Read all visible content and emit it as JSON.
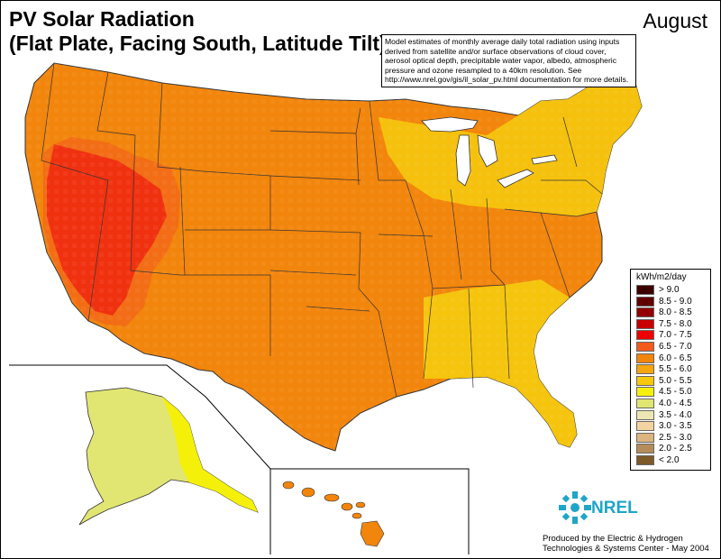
{
  "title_line1": "PV Solar Radiation",
  "title_line2": "(Flat Plate, Facing South, Latitude Tilt)",
  "month": "August",
  "note_lines": [
    "Model estimates of monthly average daily total radiation using inputs",
    "derived from satellite and/or surface observations of cloud cover,",
    "aerosol optical depth, precipitable water vapor, albedo, atmospheric",
    "pressure and ozone resampled to a 40km resolution.  See",
    "http://www.nrel.gov/gis/il_solar_pv.html documentation for more details."
  ],
  "legend": {
    "title": "kWh/m2/day",
    "items": [
      {
        "label": "> 9.0",
        "color": "#3c0000"
      },
      {
        "label": "8.5 - 9.0",
        "color": "#620000"
      },
      {
        "label": "8.0 - 8.5",
        "color": "#930000"
      },
      {
        "label": "7.5 - 8.0",
        "color": "#c80000"
      },
      {
        "label": "7.0 - 7.5",
        "color": "#ee0000"
      },
      {
        "label": "6.5 - 7.0",
        "color": "#f25a1e"
      },
      {
        "label": "6.0 - 6.5",
        "color": "#f2850c"
      },
      {
        "label": "5.5 - 6.0",
        "color": "#f5a50d"
      },
      {
        "label": "5.0 - 5.5",
        "color": "#f8c80c"
      },
      {
        "label": "4.5 - 5.0",
        "color": "#f5f00a"
      },
      {
        "label": "4.0 - 4.5",
        "color": "#e1e673"
      },
      {
        "label": "3.5 - 4.0",
        "color": "#ece6b4"
      },
      {
        "label": "3.0 - 3.5",
        "color": "#f3d3a0"
      },
      {
        "label": "2.5 - 3.0",
        "color": "#dcb47d"
      },
      {
        "label": "2.0 - 2.5",
        "color": "#b48c5a"
      },
      {
        "label": "< 2.0",
        "color": "#7d5a28"
      }
    ]
  },
  "logo_text": "NREL",
  "logo_color": "#1fa5c7",
  "credit_line1": "Produced by the Electric & Hydrogen",
  "credit_line2": "Technologies & Systems Center - May 2004"
}
